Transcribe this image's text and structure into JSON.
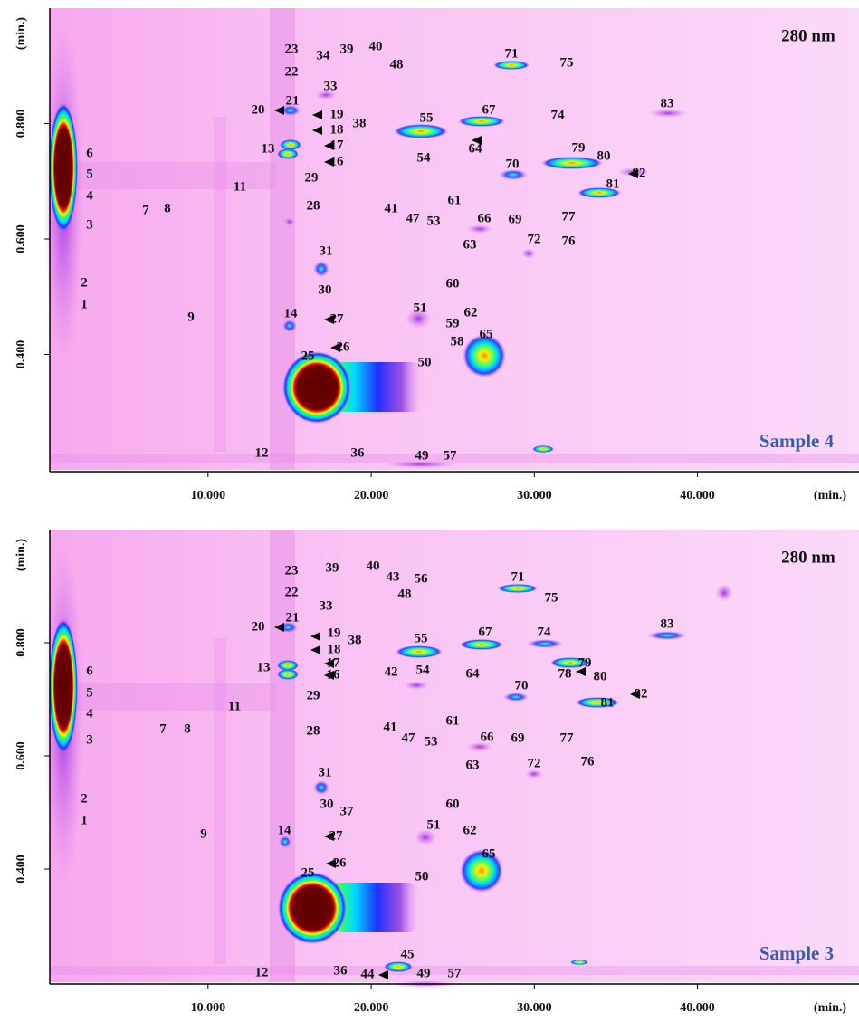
{
  "chart_data": [
    {
      "type": "heatmap",
      "wavelength_label": "280 nm",
      "sample_label": "Sample 4",
      "xlabel": "(min.)",
      "ylabel": "(min.)",
      "xlim": [
        0.3,
        49.9
      ],
      "xticks": [
        {
          "value": 10,
          "label": "10.000"
        },
        {
          "value": 20,
          "label": "20.000"
        },
        {
          "value": 30,
          "label": "30.000"
        },
        {
          "value": 40,
          "label": "40.000"
        }
      ],
      "ylim": [
        0.2,
        1.0
      ],
      "yticks": [
        {
          "value": 0.4,
          "label": "0.400"
        },
        {
          "value": 0.6,
          "label": "0.600"
        },
        {
          "value": 0.8,
          "label": "0.800"
        }
      ],
      "peaks": [
        "23",
        "22",
        "34",
        "39",
        "40",
        "48",
        "71",
        "75",
        "33",
        "21",
        "20",
        "19",
        "38",
        "18",
        "17",
        "13",
        "16",
        "29",
        "11",
        "28",
        "6",
        "5",
        "4",
        "3",
        "7",
        "8",
        "55",
        "67",
        "64",
        "54",
        "70",
        "74",
        "83",
        "79",
        "80",
        "82",
        "81",
        "61",
        "41",
        "47",
        "53",
        "66",
        "69",
        "77",
        "72",
        "76",
        "63",
        "31",
        "60",
        "30",
        "2",
        "1",
        "9",
        "51",
        "62",
        "59",
        "14",
        "27",
        "26",
        "58",
        "65",
        "50",
        "25",
        "12",
        "36",
        "49",
        "57"
      ]
    },
    {
      "type": "heatmap",
      "wavelength_label": "280 nm",
      "sample_label": "Sample 3",
      "xlabel": "(min.)",
      "ylabel": "(min.)",
      "xlim": [
        0.3,
        49.9
      ],
      "xticks": [
        {
          "value": 10,
          "label": "10.000"
        },
        {
          "value": 20,
          "label": "20.000"
        },
        {
          "value": 30,
          "label": "30.000"
        },
        {
          "value": 40,
          "label": "40.000"
        }
      ],
      "ylim": [
        0.2,
        1.0
      ],
      "yticks": [
        {
          "value": 0.4,
          "label": "0.400"
        },
        {
          "value": 0.6,
          "label": "0.600"
        },
        {
          "value": 0.8,
          "label": "0.800"
        }
      ],
      "peaks": [
        "23",
        "39",
        "40",
        "43",
        "56",
        "48",
        "71",
        "75",
        "22",
        "33",
        "21",
        "20",
        "19",
        "38",
        "18",
        "55",
        "67",
        "74",
        "83",
        "17",
        "13",
        "16",
        "42",
        "54",
        "64",
        "70",
        "78",
        "79",
        "80",
        "82",
        "81",
        "6",
        "5",
        "4",
        "3",
        "11",
        "29",
        "7",
        "8",
        "28",
        "41",
        "47",
        "53",
        "61",
        "66",
        "69",
        "77",
        "76",
        "72",
        "63",
        "31",
        "2",
        "1",
        "60",
        "30",
        "37",
        "51",
        "62",
        "9",
        "14",
        "27",
        "65",
        "26",
        "25",
        "50",
        "45",
        "12",
        "36",
        "44",
        "49",
        "57"
      ]
    }
  ]
}
